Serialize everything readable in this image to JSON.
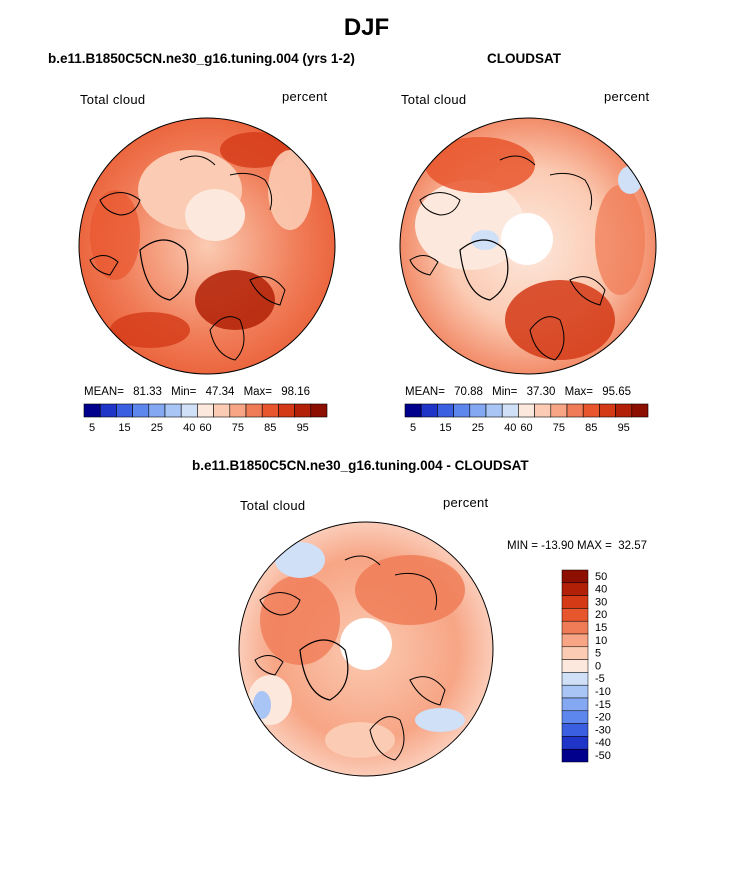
{
  "title": "DJF",
  "panels": [
    {
      "subtitle": "b.e11.B1850C5CN.ne30_g16.tuning.004 (yrs 1-2)",
      "left_label": "Total cloud",
      "right_label": "percent",
      "stats": {
        "mean_label": "MEAN=",
        "mean": "81.33",
        "min_label": "Min=",
        "min": "47.34",
        "max_label": "Max=",
        "max": "98.16"
      }
    },
    {
      "subtitle": "CLOUDSAT",
      "left_label": "Total cloud",
      "right_label": "percent",
      "stats": {
        "mean_label": "MEAN=",
        "mean": "70.88",
        "min_label": "Min=",
        "min": "37.30",
        "max_label": "Max=",
        "max": "95.65"
      }
    }
  ],
  "diff_panel": {
    "subtitle": "b.e11.B1850C5CN.ne30_g16.tuning.004 - CLOUDSAT",
    "left_label": "Total cloud",
    "right_label": "percent",
    "minmax_text": "MIN = -13.90 MAX =  32.57"
  },
  "chart_data": [
    {
      "type": "heatmap",
      "title": "b.e11.B1850C5CN.ne30_g16.tuning.004 (yrs 1-2)",
      "variable": "Total cloud",
      "units": "percent",
      "projection": "polar stereographic (north pole)",
      "stats": {
        "mean": 81.33,
        "min": 47.34,
        "max": 98.16
      },
      "colorbar": {
        "tick_labels": [
          "5",
          "15",
          "25",
          "40",
          "60",
          "75",
          "85",
          "95"
        ],
        "colors": [
          "#00008c",
          "#1f35c7",
          "#3a5fe0",
          "#5e87ee",
          "#84a8f2",
          "#a9c5f5",
          "#cfe0f7",
          "#fde8dd",
          "#fbcbb3",
          "#f7a585",
          "#f07c57",
          "#e8562d",
          "#d43a16",
          "#b22107",
          "#8c0f02"
        ]
      }
    },
    {
      "type": "heatmap",
      "title": "CLOUDSAT",
      "variable": "Total cloud",
      "units": "percent",
      "projection": "polar stereographic (north pole)",
      "stats": {
        "mean": 70.88,
        "min": 37.3,
        "max": 95.65
      },
      "colorbar": {
        "tick_labels": [
          "5",
          "15",
          "25",
          "40",
          "60",
          "75",
          "85",
          "95"
        ],
        "colors": [
          "#00008c",
          "#1f35c7",
          "#3a5fe0",
          "#5e87ee",
          "#84a8f2",
          "#a9c5f5",
          "#cfe0f7",
          "#fde8dd",
          "#fbcbb3",
          "#f7a585",
          "#f07c57",
          "#e8562d",
          "#d43a16",
          "#b22107",
          "#8c0f02"
        ]
      }
    },
    {
      "type": "heatmap",
      "title": "b.e11.B1850C5CN.ne30_g16.tuning.004 - CLOUDSAT",
      "variable": "Total cloud",
      "units": "percent",
      "projection": "polar stereographic (north pole)",
      "stats": {
        "min": -13.9,
        "max": 32.57
      },
      "colorbar": {
        "tick_labels": [
          "50",
          "40",
          "30",
          "20",
          "15",
          "10",
          "5",
          "0",
          "-5",
          "-10",
          "-15",
          "-20",
          "-30",
          "-40",
          "-50"
        ],
        "colors": [
          "#8c0f02",
          "#b22107",
          "#d43a16",
          "#e8562d",
          "#f07c57",
          "#f7a585",
          "#fbcbb3",
          "#fde8dd",
          "#cfe0f7",
          "#a9c5f5",
          "#84a8f2",
          "#5e87ee",
          "#3a5fe0",
          "#1f35c7",
          "#00008c"
        ]
      }
    }
  ]
}
